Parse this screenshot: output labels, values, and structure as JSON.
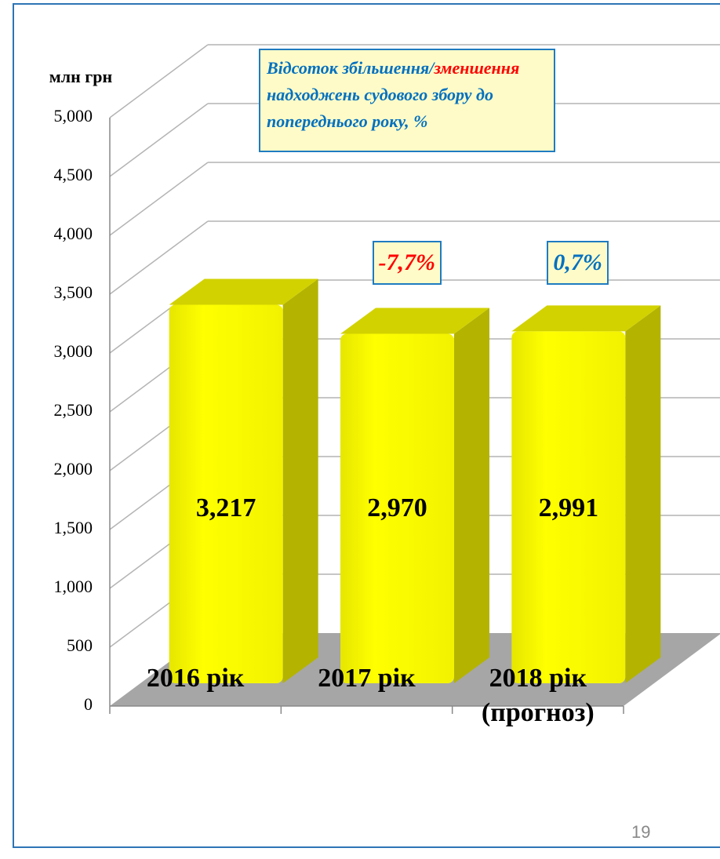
{
  "chart_data": {
    "type": "bar3d",
    "axis_label": "млн грн",
    "categories": [
      "2016 рік",
      "2017 рік",
      "2018 рік (прогноз)"
    ],
    "values": [
      3217,
      2970,
      2991
    ],
    "value_labels": [
      "3,217",
      "2,970",
      "2,991"
    ],
    "color": "#ffff00",
    "ylim": [
      0,
      5000
    ],
    "yticks": [
      0,
      500,
      {
        "value": 1000,
        "label": "1,000"
      },
      {
        "value": 1500,
        "label": "1,500"
      },
      {
        "value": 2000,
        "label": "2,000"
      },
      {
        "value": 2500,
        "label": "2,500"
      },
      {
        "value": 3000,
        "label": "3,000"
      },
      {
        "value": 3500,
        "label": "3,500"
      },
      {
        "value": 4000,
        "label": "4,000"
      },
      {
        "value": 4500,
        "label": "4,500"
      },
      {
        "value": 5000,
        "label": "5,000"
      }
    ],
    "grid": true,
    "legend_box": {
      "part1": "Відсоток збільшення/",
      "part2": "зменшення",
      "part3": "надходжень судового збору до попереднього року, %"
    },
    "annotations": [
      {
        "text": "-7,7%",
        "color": "#ff0000"
      },
      {
        "text": "0,7%",
        "color": "#0070c0"
      }
    ],
    "page_number": "19"
  }
}
